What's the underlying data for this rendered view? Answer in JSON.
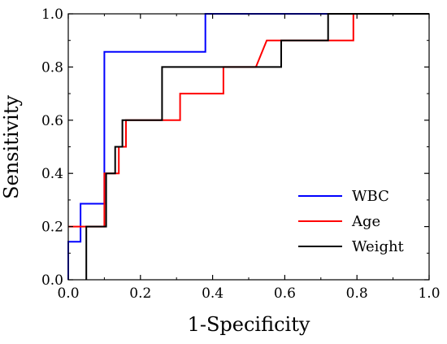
{
  "chart_data": {
    "type": "line",
    "xlabel": "1-Specificity",
    "ylabel": "Sensitivity",
    "xlim": [
      0,
      1
    ],
    "ylim": [
      0,
      1
    ],
    "xticks": [
      "0.0",
      "0.2",
      "0.4",
      "0.6",
      "0.8",
      "1.0"
    ],
    "yticks": [
      "0.0",
      "0.2",
      "0.4",
      "0.6",
      "0.8",
      "1.0"
    ],
    "grid": false,
    "legend_position": "bottom-right",
    "series": [
      {
        "name": "WBC",
        "color": "#0000ff",
        "points": [
          [
            0,
            0
          ],
          [
            0,
            0.143
          ],
          [
            0.034,
            0.143
          ],
          [
            0.034,
            0.286
          ],
          [
            0.1,
            0.286
          ],
          [
            0.1,
            0.857
          ],
          [
            0.38,
            0.857
          ],
          [
            0.38,
            1.0
          ],
          [
            1.0,
            1.0
          ]
        ]
      },
      {
        "name": "Age",
        "color": "#ff0000",
        "points": [
          [
            0,
            0.2
          ],
          [
            0.034,
            0.2
          ],
          [
            0.034,
            0.2
          ],
          [
            0.1,
            0.2
          ],
          [
            0.1,
            0.4
          ],
          [
            0.14,
            0.4
          ],
          [
            0.14,
            0.5
          ],
          [
            0.16,
            0.5
          ],
          [
            0.16,
            0.6
          ],
          [
            0.26,
            0.6
          ],
          [
            0.26,
            0.6
          ],
          [
            0.31,
            0.6
          ],
          [
            0.31,
            0.7
          ],
          [
            0.43,
            0.7
          ],
          [
            0.43,
            0.8
          ],
          [
            0.52,
            0.8
          ],
          [
            0.55,
            0.9
          ],
          [
            0.72,
            0.9
          ],
          [
            0.72,
            0.9
          ],
          [
            0.79,
            0.9
          ],
          [
            0.79,
            1.0
          ],
          [
            1.0,
            1.0
          ]
        ]
      },
      {
        "name": "Weight",
        "color": "#000000",
        "points": [
          [
            0.05,
            0
          ],
          [
            0.05,
            0.2
          ],
          [
            0.105,
            0.2
          ],
          [
            0.105,
            0.4
          ],
          [
            0.13,
            0.4
          ],
          [
            0.13,
            0.5
          ],
          [
            0.15,
            0.5
          ],
          [
            0.15,
            0.6
          ],
          [
            0.26,
            0.6
          ],
          [
            0.26,
            0.8
          ],
          [
            0.59,
            0.8
          ],
          [
            0.59,
            0.9
          ],
          [
            0.72,
            0.9
          ],
          [
            0.72,
            1.0
          ],
          [
            1.0,
            1.0
          ]
        ]
      }
    ]
  }
}
